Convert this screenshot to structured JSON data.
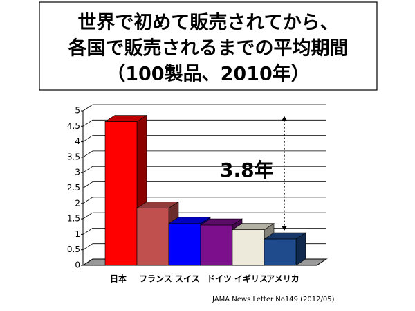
{
  "chart_data": {
    "type": "bar3d",
    "title": [
      "世界で初めて販売されてから、",
      "各国で販売されるまでの平均期間",
      "（100製品、2010年）"
    ],
    "categories": [
      "日本",
      "フランス",
      "スイス",
      "ドイツ",
      "イギリス",
      "アメリカ"
    ],
    "values": [
      4.65,
      1.85,
      1.35,
      1.3,
      1.15,
      0.85
    ],
    "colors": [
      "#ff0000",
      "#c0504d",
      "#0000ff",
      "#7b0f8c",
      "#eeeadb",
      "#1f4b8c"
    ],
    "ylim": [
      0,
      5
    ],
    "yticks": [
      0,
      0.5,
      1,
      1.5,
      2,
      2.5,
      3,
      3.5,
      4,
      4.5,
      5
    ],
    "grid": true,
    "annotation": "3.8年",
    "source": "JAMA News Letter No149 (2012/05)"
  }
}
